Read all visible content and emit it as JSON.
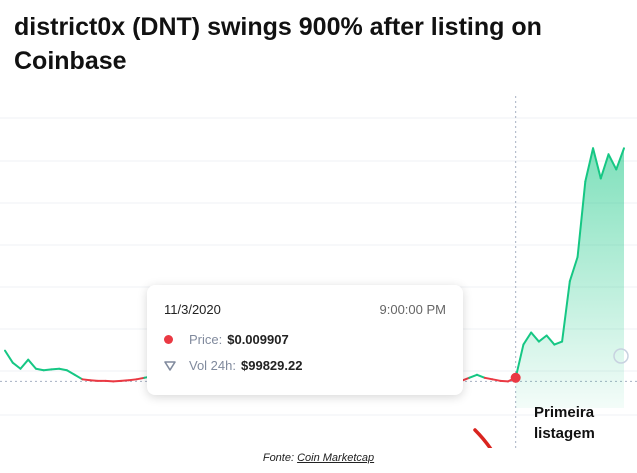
{
  "headline": "district0x (DNT) swings 900% after listing on Coinbase",
  "tooltip": {
    "date": "11/3/2020",
    "time": "9:00:00 PM",
    "price_label": "Price:",
    "price_value": "$0.009907",
    "vol_label": "Vol 24h:",
    "vol_value": "$99829.22"
  },
  "annotation": "Primeira listagem",
  "source": {
    "prefix": "Fonte: ",
    "link_text": "Coin Marketcap"
  },
  "colors": {
    "up": "#16c784",
    "down": "#ea3943",
    "arrow": "#d9241f"
  },
  "chart_data": {
    "type": "line",
    "title": "",
    "xlabel": "",
    "ylabel": "",
    "grid": true,
    "y_unit": "relative price (listing price = 1)",
    "ylim": [
      0,
      10
    ],
    "listing_index": 66,
    "highlight_price": "$0.009907",
    "x": [
      0,
      1,
      2,
      3,
      4,
      5,
      6,
      7,
      8,
      9,
      10,
      11,
      12,
      13,
      14,
      15,
      16,
      17,
      18,
      19,
      20,
      21,
      22,
      23,
      24,
      25,
      26,
      27,
      28,
      29,
      30,
      31,
      32,
      33,
      34,
      35,
      36,
      37,
      38,
      39,
      40,
      41,
      42,
      43,
      44,
      45,
      46,
      47,
      48,
      49,
      50,
      51,
      52,
      53,
      54,
      55,
      56,
      57,
      58,
      59,
      60,
      61,
      62,
      63,
      64,
      65,
      66,
      67,
      68,
      69,
      70,
      71,
      72,
      73,
      74,
      75,
      76,
      77,
      78,
      79,
      80
    ],
    "values": [
      1.9,
      1.5,
      1.3,
      1.6,
      1.3,
      1.25,
      1.28,
      1.3,
      1.25,
      1.1,
      0.95,
      0.92,
      0.9,
      0.9,
      0.88,
      0.9,
      0.92,
      0.95,
      1.0,
      1.05,
      1.0,
      0.98,
      1.02,
      1.05,
      1.0,
      0.95,
      0.9,
      0.88,
      0.85,
      0.82,
      0.8,
      0.78,
      0.78,
      0.8,
      0.82,
      0.8,
      0.78,
      0.75,
      0.76,
      0.8,
      0.82,
      0.85,
      0.83,
      0.8,
      0.75,
      0.72,
      0.7,
      0.68,
      0.7,
      0.72,
      0.74,
      0.76,
      0.78,
      0.8,
      0.8,
      0.82,
      0.85,
      0.88,
      0.85,
      0.9,
      1.0,
      1.1,
      1.0,
      0.95,
      0.9,
      0.88,
      1.0,
      2.1,
      2.5,
      2.2,
      2.4,
      2.1,
      2.2,
      4.2,
      5.0,
      7.5,
      8.6,
      7.6,
      8.4,
      7.9,
      8.6
    ]
  }
}
